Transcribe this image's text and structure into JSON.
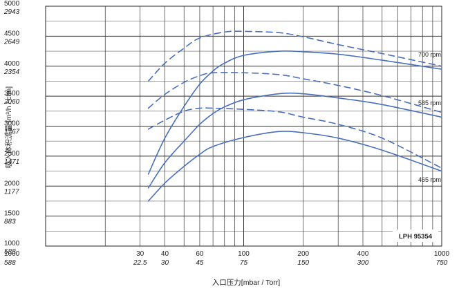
{
  "chart_data": {
    "type": "line",
    "title": "",
    "xlabel": "入口压力[mbar / Torr]",
    "ylabel": "吸入体积流量 [m³/h / cfm]",
    "x_scale": "log",
    "xlim": [
      10,
      1000
    ],
    "ylim": [
      1000,
      5000
    ],
    "grid": true,
    "x_ticks_mbar": [
      "30",
      "40",
      "60",
      "100",
      "200",
      "400",
      "1000"
    ],
    "x_ticks_torr": [
      "22.5",
      "30",
      "45",
      "75",
      "150",
      "300",
      "750"
    ],
    "y_ticks_m3h": [
      "1000",
      "1500",
      "2000",
      "2500",
      "3000",
      "3500",
      "4000",
      "4500",
      "5000"
    ],
    "y_ticks_cfm": [
      "588",
      "883",
      "1177",
      "1471",
      "1767",
      "2060",
      "2354",
      "2649",
      "2943"
    ],
    "model_label": "LPH 95354",
    "series": [
      {
        "name": "700 rpm",
        "style": "solid",
        "x": [
          33,
          40,
          50,
          60,
          70,
          80,
          100,
          150,
          200,
          300,
          500,
          1000
        ],
        "y": [
          2200,
          2800,
          3330,
          3700,
          3920,
          4050,
          4180,
          4250,
          4240,
          4200,
          4100,
          3950
        ]
      },
      {
        "name": "700 rpm",
        "style": "dashed",
        "x": [
          33,
          40,
          50,
          60,
          80,
          100,
          150,
          200,
          300,
          500,
          1000
        ],
        "y": [
          3750,
          4050,
          4300,
          4470,
          4570,
          4580,
          4560,
          4490,
          4360,
          4210,
          4000
        ]
      },
      {
        "name": "585 rpm",
        "style": "solid",
        "x": [
          33,
          40,
          50,
          60,
          70,
          80,
          100,
          150,
          200,
          300,
          500,
          1000
        ],
        "y": [
          1970,
          2390,
          2750,
          3030,
          3210,
          3320,
          3440,
          3540,
          3540,
          3470,
          3360,
          3150
        ]
      },
      {
        "name": "585 rpm",
        "style": "dashed",
        "x": [
          33,
          40,
          50,
          60,
          70,
          100,
          150,
          200,
          300,
          500,
          1000
        ],
        "y": [
          3300,
          3530,
          3730,
          3840,
          3890,
          3890,
          3860,
          3790,
          3680,
          3510,
          3230
        ]
      },
      {
        "name": "465 rpm",
        "style": "solid",
        "x": [
          33,
          40,
          50,
          60,
          70,
          100,
          150,
          200,
          300,
          500,
          1000
        ],
        "y": [
          1750,
          2050,
          2330,
          2530,
          2660,
          2810,
          2910,
          2890,
          2800,
          2600,
          2250
        ]
      },
      {
        "name": "465 rpm",
        "style": "dashed",
        "x": [
          33,
          40,
          50,
          60,
          70,
          100,
          150,
          200,
          300,
          500,
          1000
        ],
        "y": [
          2950,
          3100,
          3250,
          3300,
          3300,
          3280,
          3240,
          3150,
          3030,
          2800,
          2300
        ]
      }
    ],
    "rpm_labels": [
      "700 rpm",
      "585 rpm",
      "465 rpm"
    ]
  }
}
